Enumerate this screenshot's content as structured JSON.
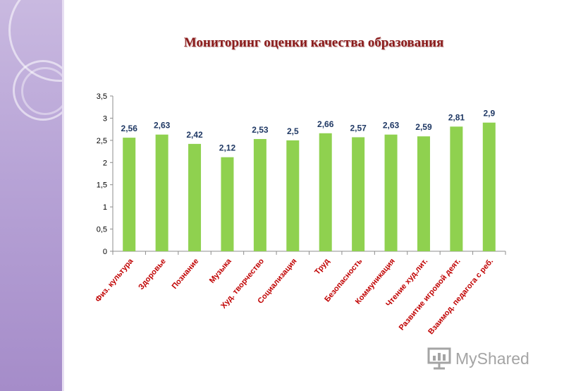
{
  "chart_data": {
    "type": "bar",
    "title": "Мониторинг оценки качества образования",
    "categories": [
      "Физ. культура",
      "Здоровье",
      "Познание",
      "Музыка",
      "Худ. творчество",
      "Социализация",
      "Труд",
      "Безопасность",
      "Коммуникация",
      "Чтение худ.лит.",
      "Развитие игровой деят.",
      "Взаимод. педагога с реб."
    ],
    "values": [
      2.56,
      2.63,
      2.42,
      2.12,
      2.53,
      2.5,
      2.66,
      2.57,
      2.63,
      2.59,
      2.81,
      2.9
    ],
    "value_labels": [
      "2,56",
      "2,63",
      "2,42",
      "2,12",
      "2,53",
      "2,5",
      "2,66",
      "2,57",
      "2,63",
      "2,59",
      "2,81",
      "2,9"
    ],
    "ylim": [
      0,
      3.5
    ],
    "yticks": [
      0,
      0.5,
      1,
      1.5,
      2,
      2.5,
      3,
      3.5
    ],
    "ytick_labels": [
      "0",
      "0,5",
      "1",
      "1,5",
      "2",
      "2,5",
      "3",
      "3,5"
    ],
    "grid": false,
    "legend": "none",
    "bar_color": "#8fd14f",
    "label_color": "#1f3864",
    "category_color": "#c00000"
  },
  "watermark": {
    "text": "MyShared"
  },
  "colors": {
    "title": "#8b1c1c",
    "sidebar": "#b7a3d6"
  }
}
